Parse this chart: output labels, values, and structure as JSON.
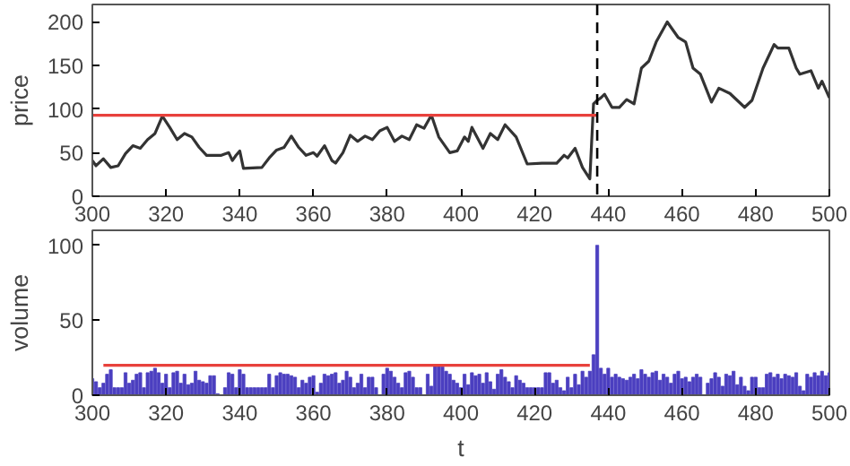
{
  "chart_data": [
    {
      "type": "line",
      "ylabel": "price",
      "xlim": [
        300,
        500
      ],
      "ylim": [
        0,
        220
      ],
      "xticks": [
        300,
        320,
        340,
        360,
        380,
        400,
        420,
        440,
        460,
        480,
        500
      ],
      "yticks": [
        0,
        50,
        100,
        150,
        200
      ],
      "grid": false,
      "series": [
        {
          "color": "#333333",
          "x": [
            300,
            301,
            303,
            305,
            307,
            309,
            311,
            313,
            315,
            317,
            319,
            321,
            323,
            325,
            327,
            329,
            331,
            335,
            337,
            338,
            339,
            340,
            341,
            346,
            348,
            350,
            352,
            354,
            356,
            358,
            360,
            361,
            363,
            365,
            366,
            368,
            370,
            372,
            374,
            376,
            378,
            380,
            382,
            384,
            386,
            388,
            390,
            392,
            394,
            397,
            399,
            401,
            402,
            403,
            406,
            408,
            410,
            412,
            415,
            418,
            422,
            426,
            428,
            429,
            431,
            433,
            435,
            436,
            437,
            438,
            439,
            441,
            443,
            445,
            447,
            449,
            451,
            453,
            456,
            459,
            461,
            463,
            465,
            468,
            470,
            473,
            475,
            477,
            479,
            482,
            485,
            486,
            489,
            491,
            492,
            495,
            497,
            498,
            500
          ],
          "values": [
            41,
            35,
            43,
            33,
            35,
            49,
            58,
            55,
            65,
            72,
            92,
            79,
            65,
            72,
            68,
            56,
            47,
            47,
            50,
            41,
            47,
            52,
            32,
            33,
            44,
            53,
            56,
            69,
            56,
            47,
            50,
            46,
            58,
            41,
            38,
            50,
            70,
            63,
            69,
            65,
            75,
            79,
            63,
            69,
            65,
            82,
            78,
            93,
            68,
            50,
            52,
            68,
            63,
            79,
            55,
            72,
            65,
            82,
            68,
            37,
            38,
            38,
            47,
            44,
            55,
            33,
            20,
            106,
            110,
            113,
            117,
            102,
            102,
            111,
            106,
            147,
            155,
            177,
            200,
            182,
            177,
            147,
            140,
            108,
            124,
            118,
            110,
            102,
            110,
            147,
            174,
            170,
            170,
            147,
            140,
            144,
            124,
            132,
            113
          ]
        },
        {
          "type": "line",
          "color": "#e8413c",
          "x": [
            300,
            437
          ],
          "values": [
            93,
            93
          ]
        }
      ],
      "ref_lines": [
        {
          "axis": "x",
          "value": 437,
          "color": "#000000",
          "line_style": "dashed"
        }
      ]
    },
    {
      "type": "bar",
      "xlabel": "t",
      "ylabel": "volume",
      "xlim": [
        300,
        500
      ],
      "ylim": [
        0,
        110
      ],
      "xticks": [
        300,
        320,
        340,
        360,
        380,
        400,
        420,
        440,
        460,
        480,
        500
      ],
      "yticks": [
        0,
        50,
        100
      ],
      "grid": false,
      "x": [
        300,
        301,
        302,
        303,
        304,
        305,
        306,
        307,
        308,
        309,
        310,
        311,
        312,
        313,
        314,
        315,
        316,
        317,
        318,
        319,
        320,
        321,
        322,
        323,
        324,
        325,
        326,
        327,
        328,
        329,
        330,
        331,
        332,
        333,
        334,
        335,
        336,
        337,
        338,
        339,
        340,
        341,
        342,
        343,
        344,
        345,
        346,
        347,
        348,
        349,
        350,
        351,
        352,
        353,
        354,
        355,
        356,
        357,
        358,
        359,
        360,
        361,
        362,
        363,
        364,
        365,
        366,
        367,
        368,
        369,
        370,
        371,
        372,
        373,
        374,
        375,
        376,
        377,
        378,
        379,
        380,
        381,
        382,
        383,
        384,
        385,
        386,
        387,
        388,
        389,
        390,
        391,
        392,
        393,
        394,
        395,
        396,
        397,
        398,
        399,
        400,
        401,
        402,
        403,
        404,
        405,
        406,
        407,
        408,
        409,
        410,
        411,
        412,
        413,
        414,
        415,
        416,
        417,
        418,
        419,
        420,
        421,
        422,
        423,
        424,
        425,
        426,
        427,
        428,
        429,
        430,
        431,
        432,
        433,
        434,
        435,
        436,
        437,
        438,
        439,
        440,
        441,
        442,
        443,
        444,
        445,
        446,
        447,
        448,
        449,
        450,
        451,
        452,
        453,
        454,
        455,
        456,
        457,
        458,
        459,
        460,
        461,
        462,
        463,
        464,
        465,
        466,
        467,
        468,
        469,
        470,
        471,
        472,
        473,
        474,
        475,
        476,
        477,
        478,
        479,
        480,
        481,
        482,
        483,
        484,
        485,
        486,
        487,
        488,
        489,
        490,
        491,
        492,
        493,
        494,
        495,
        496,
        497,
        498,
        499,
        500
      ],
      "series": [
        {
          "color": "#4b3fc0",
          "values": [
            11,
            9,
            5,
            8,
            14,
            17,
            5,
            5,
            5,
            15,
            8,
            10,
            14,
            15,
            5,
            15,
            16,
            18,
            15,
            8,
            14,
            5,
            15,
            16,
            8,
            14,
            7,
            8,
            16,
            10,
            9,
            8,
            13,
            13,
            1,
            0,
            5,
            15,
            14,
            5,
            17,
            14,
            5,
            5,
            5,
            5,
            5,
            5,
            14,
            5,
            13,
            15,
            14,
            14,
            13,
            12,
            5,
            10,
            8,
            12,
            13,
            2,
            8,
            14,
            13,
            14,
            15,
            8,
            10,
            16,
            12,
            5,
            8,
            14,
            5,
            12,
            12,
            5,
            0,
            14,
            18,
            16,
            12,
            8,
            5,
            15,
            16,
            12,
            5,
            5,
            0,
            14,
            6,
            20,
            20,
            19,
            16,
            14,
            10,
            8,
            5,
            14,
            7,
            15,
            13,
            14,
            8,
            15,
            9,
            4,
            14,
            17,
            12,
            9,
            5,
            13,
            10,
            8,
            5,
            5,
            5,
            5,
            5,
            15,
            15,
            8,
            10,
            5,
            3,
            12,
            5,
            14,
            7,
            16,
            12,
            16,
            27,
            100,
            18,
            14,
            18,
            12,
            14,
            12,
            11,
            10,
            12,
            14,
            11,
            17,
            14,
            12,
            15,
            16,
            10,
            14,
            12,
            8,
            14,
            16,
            11,
            12,
            9,
            12,
            14,
            12,
            null,
            8,
            11,
            15,
            12,
            6,
            14,
            13,
            16,
            7,
            12,
            6,
            3,
            12,
            12,
            5,
            5,
            14,
            15,
            12,
            14,
            11,
            14,
            13,
            12,
            15,
            6,
            3,
            14,
            12,
            15,
            13,
            16,
            13,
            15
          ]
        },
        {
          "type": "line",
          "color": "#e8413c",
          "x": [
            303,
            435
          ],
          "values": [
            20,
            20
          ]
        }
      ]
    }
  ]
}
